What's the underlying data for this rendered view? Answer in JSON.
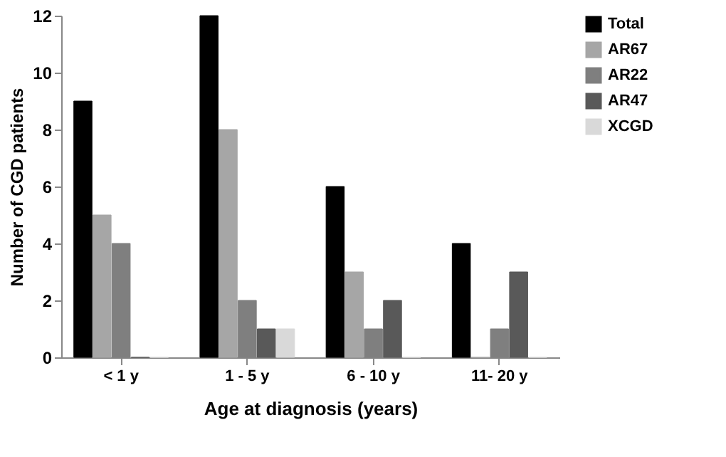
{
  "chart_data": {
    "type": "bar",
    "xlabel": "Age at diagnosis (years)",
    "ylabel": "Number of CGD patients",
    "categories": [
      "< 1 y",
      "1 - 5 y",
      "6 - 10 y",
      "11- 20 y"
    ],
    "series": [
      {
        "name": "Total",
        "color": "#000000",
        "values": [
          9,
          12,
          6,
          4
        ]
      },
      {
        "name": "AR67",
        "color": "#a6a6a6",
        "values": [
          5,
          8,
          3,
          0
        ]
      },
      {
        "name": "AR22",
        "color": "#7f7f7f",
        "values": [
          4,
          2,
          1,
          1
        ]
      },
      {
        "name": "AR47",
        "color": "#595959",
        "values": [
          0,
          1,
          2,
          3
        ]
      },
      {
        "name": "XCGD",
        "color": "#d9d9d9",
        "values": [
          0,
          1,
          0,
          0
        ]
      }
    ],
    "ylim": [
      0,
      12
    ],
    "yticks": [
      0,
      2,
      4,
      6,
      8,
      10,
      12
    ],
    "grid": false,
    "legend": "right"
  }
}
